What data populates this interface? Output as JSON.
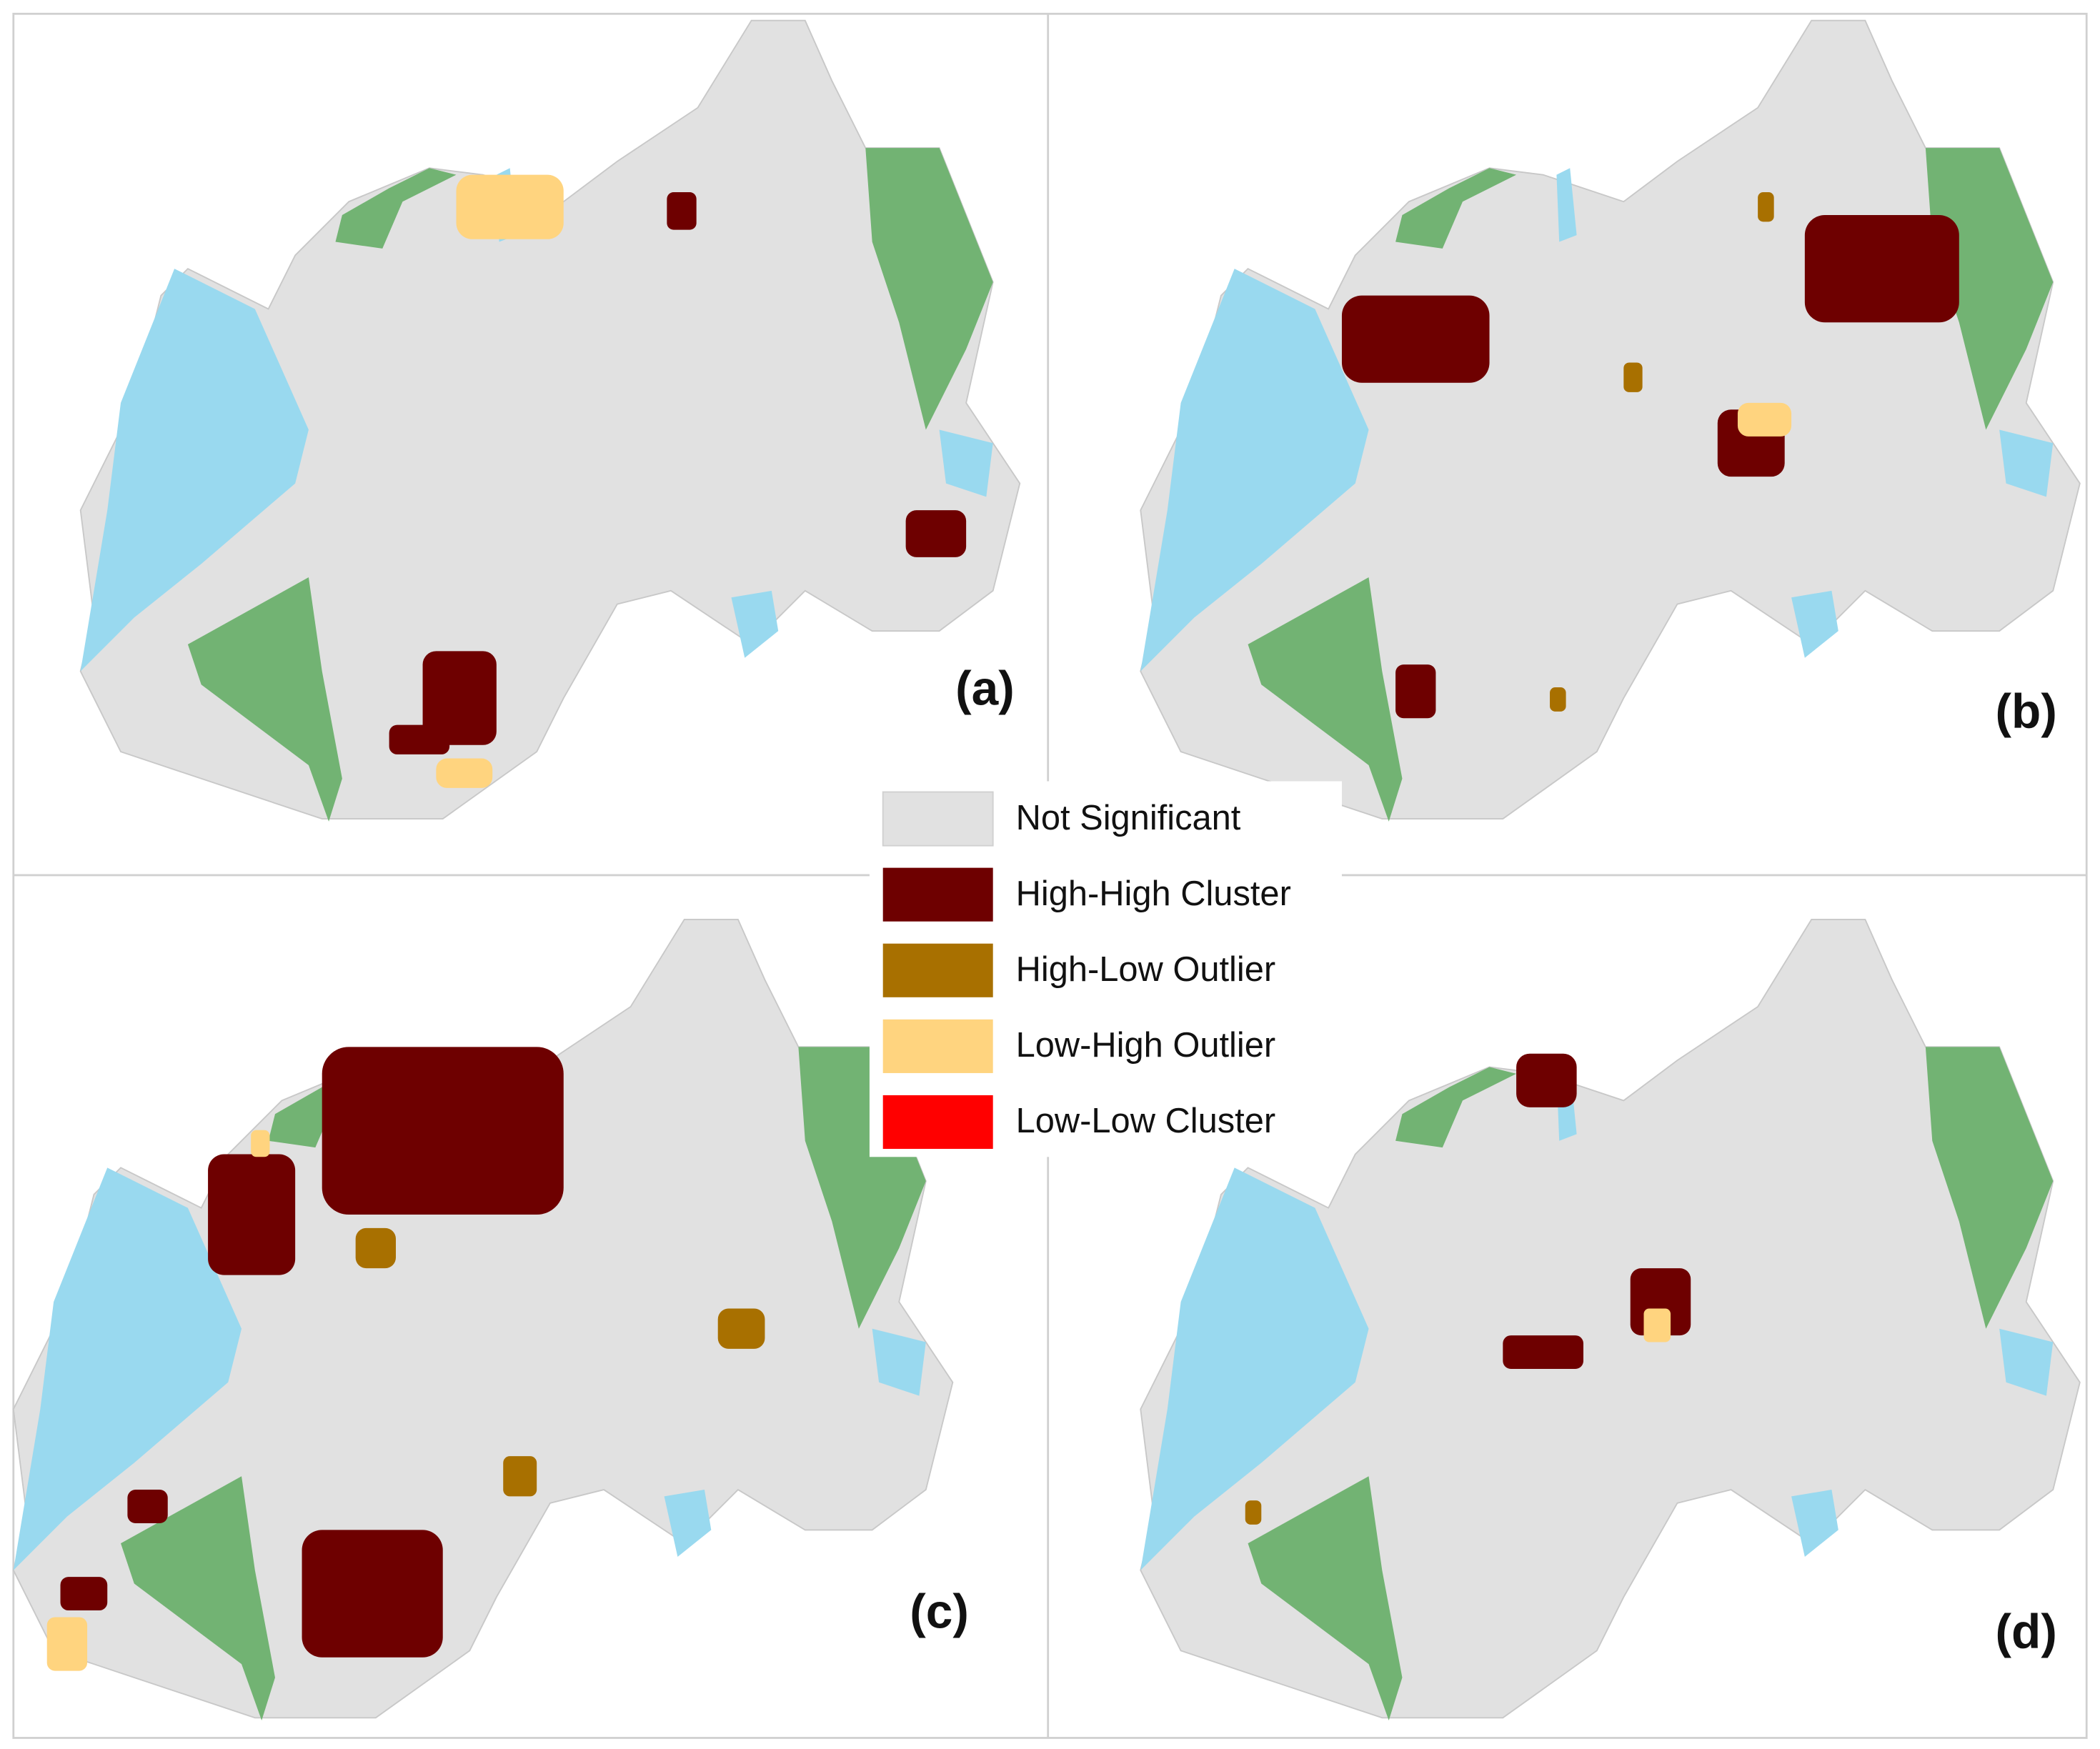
{
  "panels": [
    {
      "label": "(a)"
    },
    {
      "label": "(b)"
    },
    {
      "label": "(c)"
    },
    {
      "label": "(d)"
    }
  ],
  "legend": {
    "items": [
      {
        "label": "Not Significant",
        "color": "#e1e1e1"
      },
      {
        "label": "High-High Cluster",
        "color": "#6e0000"
      },
      {
        "label": "High-Low Outlier",
        "color": "#a87000"
      },
      {
        "label": "Low-High Outlier",
        "color": "#ffd47f"
      },
      {
        "label": "Low-Low Cluster",
        "color": "#ff0000"
      }
    ]
  }
}
